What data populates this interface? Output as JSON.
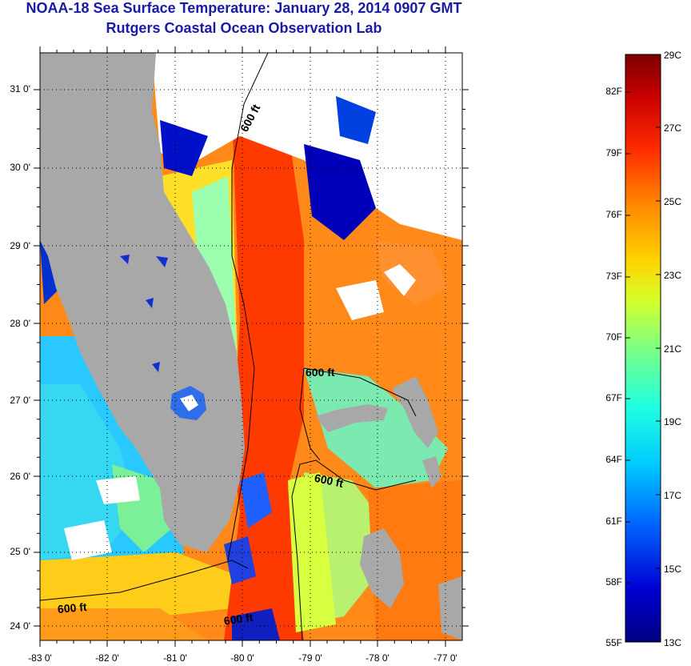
{
  "title": "NOAA-18 Sea Surface Temperature:  January 28, 2014 0907 GMT",
  "subtitle": "Rutgers Coastal Ocean Observation Lab",
  "latitude_ticks": [
    "31 0'",
    "30 0'",
    "29 0'",
    "28 0'",
    "27 0'",
    "26 0'",
    "25 0'",
    "24 0'"
  ],
  "longitude_ticks": [
    "-83 0'",
    "-82 0'",
    "-81 0'",
    "-80 0'",
    "-79 0'",
    "-78 0'",
    "-77 0'"
  ],
  "isobath_labels": [
    "600 ft",
    "600 ft",
    "600 ft",
    "600 ft",
    "600 ft"
  ],
  "colorbar": {
    "fahrenheit": [
      "82F",
      "79F",
      "76F",
      "73F",
      "70F",
      "67F",
      "64F",
      "61F",
      "58F",
      "55F"
    ],
    "celsius": [
      "29C",
      "27C",
      "25C",
      "23C",
      "21C",
      "19C",
      "17C",
      "15C",
      "13C"
    ],
    "colors": [
      "#7a0000",
      "#c80000",
      "#ff2a00",
      "#ff8c00",
      "#ffd200",
      "#d4ff2a",
      "#7cff82",
      "#1fffe0",
      "#00c8ff",
      "#0064ff",
      "#0000d4",
      "#000080"
    ]
  },
  "colors": {
    "title": "#1a1aa8",
    "land": "#a8a8a8",
    "cloud": "#ffffff"
  }
}
